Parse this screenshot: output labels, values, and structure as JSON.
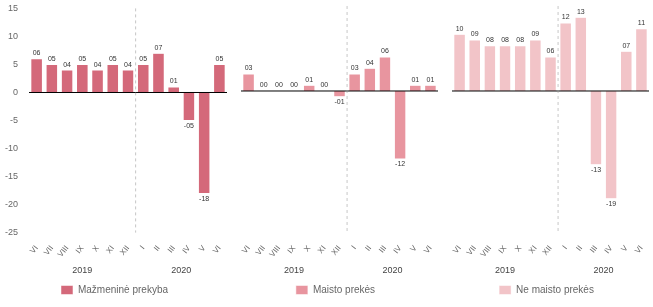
{
  "chart_data": [
    {
      "type": "bar",
      "categories": [
        "VI",
        "VII",
        "VIII",
        "IX",
        "X",
        "XI",
        "XII",
        "I",
        "II",
        "III",
        "IV",
        "V",
        "VI"
      ],
      "series": [
        {
          "name": "Mažmeninė prekyba",
          "color": "#d4697a",
          "values": [
            6,
            5,
            4,
            5,
            4,
            5,
            4,
            5,
            7,
            1,
            -5,
            -18,
            5
          ],
          "value_labels": [
            "06",
            "05",
            "04",
            "05",
            "04",
            "05",
            "04",
            "05",
            "07",
            "01",
            "-05",
            "-18",
            "05"
          ]
        }
      ],
      "ylim": [
        -25,
        15
      ],
      "yticks": [
        -25,
        -20,
        -15,
        -10,
        -5,
        0,
        5,
        10,
        15
      ],
      "grid": false,
      "legend": "bottom",
      "data_labels": true,
      "annotations": [
        {
          "text": "2019",
          "span": 7
        },
        {
          "text": "2020",
          "span": 6
        }
      ]
    },
    {
      "type": "bar",
      "categories": [
        "VI",
        "VII",
        "VIII",
        "IX",
        "X",
        "XI",
        "XII",
        "I",
        "II",
        "III",
        "IV",
        "V",
        "VI"
      ],
      "series": [
        {
          "name": "Maisto prekės",
          "color": "#e8959f",
          "values": [
            3,
            0,
            0,
            0,
            1,
            0,
            -1,
            3,
            4,
            6,
            -12,
            1,
            1
          ],
          "value_labels": [
            "03",
            "00",
            "00",
            "00",
            "01",
            "00",
            "-01",
            "03",
            "04",
            "06",
            "-12",
            "01",
            "01"
          ]
        }
      ],
      "ylim": [
        -25,
        15
      ],
      "yticks": [
        -25,
        -20,
        -15,
        -10,
        -5,
        0,
        5,
        10,
        15
      ],
      "grid": false,
      "legend": "bottom",
      "data_labels": true,
      "tick_labels": "x",
      "annotations": [
        {
          "text": "2019",
          "span": 7
        },
        {
          "text": "2020",
          "span": 6
        }
      ]
    },
    {
      "type": "bar",
      "categories": [
        "VI",
        "VII",
        "VIII",
        "IX",
        "X",
        "XI",
        "XII",
        "I",
        "II",
        "III",
        "IV",
        "V",
        "VI"
      ],
      "series": [
        {
          "name": "Ne maisto prekės",
          "color": "#f2c4c8",
          "values": [
            10,
            9,
            8,
            8,
            8,
            9,
            6,
            12,
            13,
            -13,
            -19,
            7,
            11
          ],
          "value_labels": [
            "10",
            "09",
            "08",
            "08",
            "08",
            "09",
            "06",
            "12",
            "13",
            "-13",
            "-19",
            "07",
            "11"
          ]
        }
      ],
      "ylim": [
        -25,
        15
      ],
      "yticks": [
        -25,
        -20,
        -15,
        -10,
        -5,
        0,
        5,
        10,
        15
      ],
      "grid": false,
      "legend": "bottom",
      "data_labels": true,
      "tick_labels": "x",
      "annotations": [
        {
          "text": "2019",
          "span": 7
        },
        {
          "text": "2020",
          "span": 6
        }
      ]
    }
  ]
}
